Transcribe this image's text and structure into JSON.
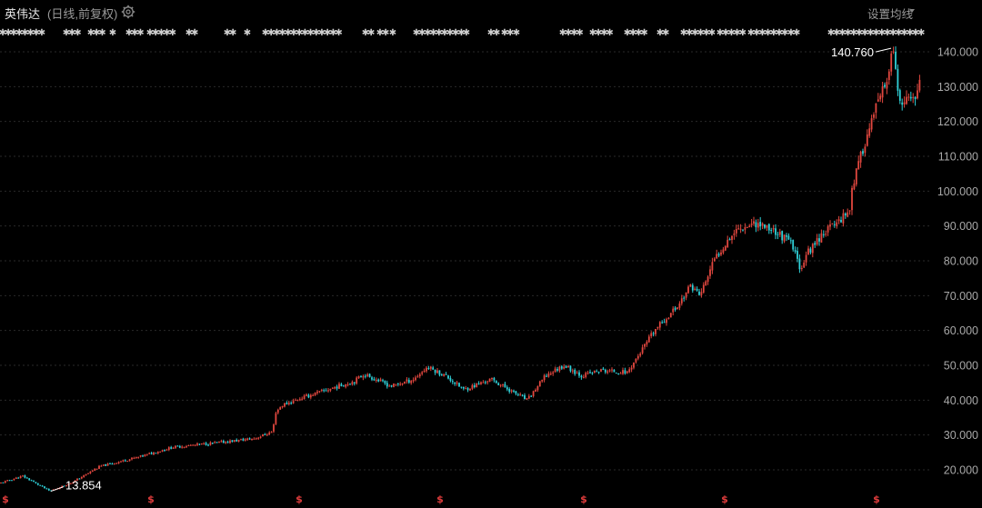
{
  "header": {
    "stock_name": "英伟达",
    "period_label": "(日线,前复权)",
    "ma_setting_label": "设置均线"
  },
  "colors": {
    "background": "#000000",
    "up": "#e2473f",
    "down": "#2fd0d8",
    "grid": "#2a2a2a",
    "axis_text": "#a8a8a8",
    "marker": "#cfcfcf",
    "dividend_marker": "#e23d3d"
  },
  "icons": {
    "settings": "gear-icon",
    "dropdown": "caret-down-icon",
    "event": "asterisk-icon",
    "dividend": "dollar-sign-icon"
  },
  "chart_data": {
    "type": "candlestick",
    "y_ticks": [
      "140.000",
      "130.000",
      "120.000",
      "110.000",
      "100.000",
      "90.000",
      "80.000",
      "70.000",
      "60.000",
      "50.000",
      "40.000",
      "30.000",
      "20.000"
    ],
    "ylim": [
      14,
      143
    ],
    "grid": true,
    "annotations": [
      {
        "label": "140.760",
        "value": 140.76,
        "kind": "max"
      },
      {
        "label": "13.854",
        "value": 13.854,
        "kind": "min"
      }
    ],
    "trend": [
      [
        0,
        16.2
      ],
      [
        25,
        18.2
      ],
      [
        55,
        13.854
      ],
      [
        80,
        16.5
      ],
      [
        110,
        21
      ],
      [
        150,
        23.5
      ],
      [
        190,
        26.5
      ],
      [
        240,
        27.8
      ],
      [
        280,
        29
      ],
      [
        300,
        31
      ],
      [
        303,
        36.5
      ],
      [
        310,
        38.5
      ],
      [
        330,
        40.5
      ],
      [
        360,
        43
      ],
      [
        390,
        45.5
      ],
      [
        400,
        47.5
      ],
      [
        430,
        44
      ],
      [
        455,
        46
      ],
      [
        470,
        49.5
      ],
      [
        490,
        47
      ],
      [
        510,
        43
      ],
      [
        540,
        46
      ],
      [
        560,
        43
      ],
      [
        580,
        40
      ],
      [
        600,
        47
      ],
      [
        620,
        50
      ],
      [
        640,
        47
      ],
      [
        660,
        48.5
      ],
      [
        690,
        48
      ],
      [
        700,
        52
      ],
      [
        720,
        60
      ],
      [
        745,
        67
      ],
      [
        760,
        73
      ],
      [
        770,
        70
      ],
      [
        785,
        80
      ],
      [
        800,
        86
      ],
      [
        810,
        89
      ],
      [
        830,
        91
      ],
      [
        850,
        89
      ],
      [
        870,
        85
      ],
      [
        880,
        78
      ],
      [
        890,
        83
      ],
      [
        905,
        88
      ],
      [
        920,
        91
      ],
      [
        935,
        95
      ],
      [
        937,
        101
      ],
      [
        950,
        113
      ],
      [
        965,
        125
      ],
      [
        975,
        131
      ],
      [
        982,
        140.76
      ],
      [
        990,
        124
      ],
      [
        1000,
        126
      ],
      [
        1010,
        129
      ],
      [
        1013,
        132
      ]
    ],
    "event_markers": [
      "✱",
      "✱",
      "✱",
      "✱",
      "✱",
      "✱",
      "✱",
      "✱",
      "✱",
      "✱",
      "✱",
      "✱",
      "✱",
      "✱",
      "✱",
      "✱",
      "✱",
      "✱",
      "✱",
      "✱"
    ],
    "dividend_markers": [
      "$",
      "$",
      "$",
      "$",
      "$",
      "$",
      "$"
    ]
  }
}
